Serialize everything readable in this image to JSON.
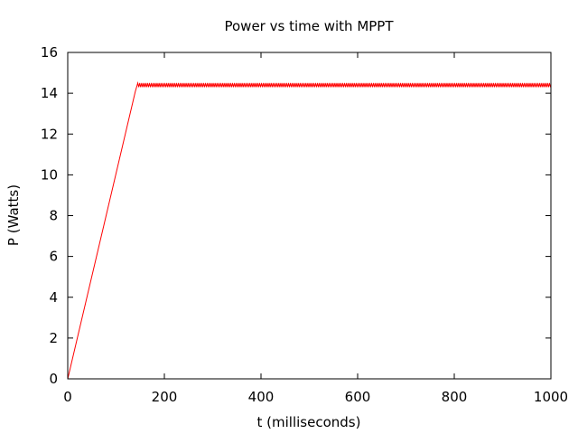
{
  "chart_data": {
    "type": "line",
    "title": "Power vs time with MPPT",
    "xlabel": "t (milliseconds)",
    "ylabel": "P (Watts)",
    "xlim": [
      0,
      1000
    ],
    "ylim": [
      0,
      16
    ],
    "xticks": [
      0,
      200,
      400,
      600,
      800,
      1000
    ],
    "yticks": [
      0,
      2,
      4,
      6,
      8,
      10,
      12,
      14,
      16
    ],
    "grid": false,
    "series": [
      {
        "color": "#ff0000",
        "ramp": [
          [
            0,
            0
          ],
          [
            140,
            14.1
          ],
          [
            145,
            14.5
          ]
        ],
        "oscillation": {
          "start": 145,
          "end": 1000,
          "period": 4,
          "high": 14.5,
          "low": 14.3
        }
      }
    ]
  }
}
